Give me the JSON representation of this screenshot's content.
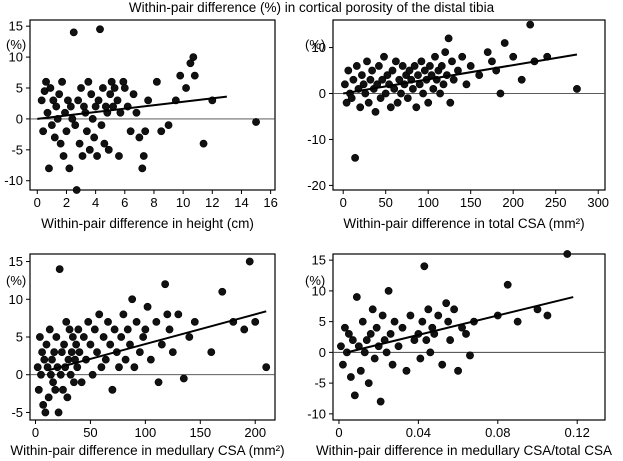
{
  "title": "Within-pair difference (%) in cortical porosity of the distal tibia",
  "chart_data": [
    {
      "type": "scatter",
      "panel": "top-left",
      "xlabel": "Within-pair difference in height (cm)",
      "ylabel": "(%)",
      "xlim": [
        -0.5,
        16.3
      ],
      "ylim": [
        -11.5,
        16
      ],
      "xticks": [
        0,
        2,
        4,
        6,
        8,
        10,
        12,
        14,
        16
      ],
      "yticks": [
        -10,
        -5,
        0,
        5,
        10,
        15
      ],
      "grid": false,
      "regression": {
        "x": [
          0,
          13
        ],
        "y": [
          0,
          3.6
        ]
      },
      "reference_line_y": 0,
      "points": [
        [
          0.3,
          3
        ],
        [
          0.4,
          -2
        ],
        [
          0.5,
          4.5
        ],
        [
          0.6,
          6
        ],
        [
          0.7,
          1
        ],
        [
          0.8,
          -8
        ],
        [
          0.9,
          5
        ],
        [
          1,
          -1
        ],
        [
          1.1,
          3
        ],
        [
          1.2,
          -3
        ],
        [
          1.3,
          2
        ],
        [
          1.4,
          0
        ],
        [
          1.5,
          4
        ],
        [
          1.6,
          -4
        ],
        [
          1.7,
          6
        ],
        [
          1.8,
          -6
        ],
        [
          1.9,
          1
        ],
        [
          2,
          -2
        ],
        [
          2.1,
          3
        ],
        [
          2.2,
          -8
        ],
        [
          2.3,
          2
        ],
        [
          2.4,
          0
        ],
        [
          2.5,
          14
        ],
        [
          2.6,
          -1
        ],
        [
          2.7,
          -11.5
        ],
        [
          2.8,
          3
        ],
        [
          2.9,
          -4
        ],
        [
          3,
          5
        ],
        [
          3.1,
          -6
        ],
        [
          3.2,
          2
        ],
        [
          3.3,
          1
        ],
        [
          3.4,
          -2
        ],
        [
          3.5,
          6
        ],
        [
          3.6,
          -5
        ],
        [
          3.7,
          4
        ],
        [
          3.8,
          0
        ],
        [
          3.9,
          -3
        ],
        [
          4,
          2
        ],
        [
          4.1,
          -6
        ],
        [
          4.2,
          3
        ],
        [
          4.3,
          14.5
        ],
        [
          4.4,
          -1
        ],
        [
          4.5,
          5
        ],
        [
          4.6,
          -4
        ],
        [
          4.7,
          2
        ],
        [
          4.8,
          1
        ],
        [
          4.9,
          -5
        ],
        [
          5,
          4
        ],
        [
          5.1,
          6
        ],
        [
          5.2,
          2
        ],
        [
          5.3,
          5
        ],
        [
          5.5,
          3
        ],
        [
          5.6,
          -6
        ],
        [
          5.7,
          1
        ],
        [
          5.9,
          6
        ],
        [
          6,
          5
        ],
        [
          6.2,
          2
        ],
        [
          6.4,
          -2
        ],
        [
          6.6,
          4
        ],
        [
          6.8,
          1
        ],
        [
          7,
          -3
        ],
        [
          7.2,
          -8
        ],
        [
          7.3,
          -6
        ],
        [
          7.4,
          -2
        ],
        [
          7.6,
          3
        ],
        [
          8.2,
          6
        ],
        [
          8.5,
          -2
        ],
        [
          9,
          -1
        ],
        [
          9.5,
          3
        ],
        [
          9.8,
          7
        ],
        [
          10.2,
          5
        ],
        [
          10.5,
          9
        ],
        [
          10.7,
          10
        ],
        [
          10.8,
          7
        ],
        [
          11.4,
          -4
        ],
        [
          12,
          3
        ],
        [
          15,
          -0.5
        ]
      ]
    },
    {
      "type": "scatter",
      "panel": "top-right",
      "xlabel": "Within-pair difference in total CSA (mm²)",
      "ylabel": "(%)",
      "xlim": [
        -12,
        308
      ],
      "ylim": [
        -21,
        16
      ],
      "xticks": [
        0,
        50,
        100,
        150,
        200,
        250,
        300
      ],
      "yticks": [
        -20,
        -10,
        0,
        10
      ],
      "grid": false,
      "regression": {
        "x": [
          0,
          275
        ],
        "y": [
          0,
          8.5
        ]
      },
      "reference_line_y": 0,
      "points": [
        [
          2,
          2
        ],
        [
          4,
          -2
        ],
        [
          6,
          5
        ],
        [
          8,
          0
        ],
        [
          10,
          -1
        ],
        [
          12,
          3
        ],
        [
          14,
          -14
        ],
        [
          16,
          6
        ],
        [
          18,
          1
        ],
        [
          20,
          -3
        ],
        [
          22,
          4
        ],
        [
          24,
          2
        ],
        [
          26,
          0
        ],
        [
          28,
          7
        ],
        [
          30,
          -2
        ],
        [
          32,
          3
        ],
        [
          34,
          5
        ],
        [
          36,
          1
        ],
        [
          38,
          -4
        ],
        [
          40,
          2
        ],
        [
          42,
          6
        ],
        [
          44,
          -1
        ],
        [
          46,
          3
        ],
        [
          48,
          8
        ],
        [
          50,
          0
        ],
        [
          52,
          4
        ],
        [
          54,
          2
        ],
        [
          56,
          -3
        ],
        [
          58,
          5
        ],
        [
          60,
          1
        ],
        [
          62,
          7
        ],
        [
          64,
          -2
        ],
        [
          66,
          3
        ],
        [
          68,
          0
        ],
        [
          70,
          6
        ],
        [
          72,
          2
        ],
        [
          74,
          4
        ],
        [
          76,
          -1
        ],
        [
          78,
          5
        ],
        [
          80,
          3
        ],
        [
          82,
          1
        ],
        [
          84,
          6
        ],
        [
          86,
          -3
        ],
        [
          88,
          4
        ],
        [
          90,
          2
        ],
        [
          92,
          7
        ],
        [
          94,
          0
        ],
        [
          96,
          5
        ],
        [
          98,
          3
        ],
        [
          100,
          -2
        ],
        [
          102,
          6
        ],
        [
          104,
          4
        ],
        [
          106,
          1
        ],
        [
          108,
          8
        ],
        [
          110,
          3
        ],
        [
          112,
          5
        ],
        [
          114,
          0
        ],
        [
          116,
          6
        ],
        [
          118,
          2
        ],
        [
          120,
          9
        ],
        [
          122,
          4
        ],
        [
          124,
          12
        ],
        [
          126,
          -2
        ],
        [
          128,
          7
        ],
        [
          130,
          3
        ],
        [
          135,
          5
        ],
        [
          140,
          8
        ],
        [
          145,
          2
        ],
        [
          150,
          6
        ],
        [
          160,
          4
        ],
        [
          170,
          9
        ],
        [
          175,
          7
        ],
        [
          180,
          5
        ],
        [
          185,
          0
        ],
        [
          190,
          11
        ],
        [
          200,
          8
        ],
        [
          210,
          3
        ],
        [
          220,
          15
        ],
        [
          225,
          7
        ],
        [
          240,
          8
        ],
        [
          275,
          1
        ]
      ]
    },
    {
      "type": "scatter",
      "panel": "bottom-left",
      "xlabel": "Within-pair difference in medullary CSA (mm²)",
      "ylabel": "(%)",
      "xlim": [
        -5,
        218
      ],
      "ylim": [
        -6,
        16
      ],
      "xticks": [
        0,
        50,
        100,
        150,
        200
      ],
      "yticks": [
        -5,
        0,
        5,
        10,
        15
      ],
      "grid": false,
      "regression": {
        "x": [
          12,
          210
        ],
        "y": [
          0.6,
          8.4
        ]
      },
      "reference_line_y": 0,
      "points": [
        [
          2,
          1
        ],
        [
          3,
          -2
        ],
        [
          4,
          5
        ],
        [
          5,
          0
        ],
        [
          6,
          3
        ],
        [
          7,
          -4
        ],
        [
          8,
          2
        ],
        [
          9,
          -5
        ],
        [
          10,
          4
        ],
        [
          11,
          1
        ],
        [
          12,
          -3
        ],
        [
          13,
          6
        ],
        [
          14,
          0
        ],
        [
          15,
          2
        ],
        [
          16,
          -1
        ],
        [
          17,
          3
        ],
        [
          18,
          -2
        ],
        [
          19,
          5
        ],
        [
          20,
          1
        ],
        [
          21,
          -5
        ],
        [
          22,
          14
        ],
        [
          23,
          0
        ],
        [
          24,
          3
        ],
        [
          25,
          -2
        ],
        [
          26,
          4
        ],
        [
          27,
          1
        ],
        [
          28,
          7
        ],
        [
          29,
          -3
        ],
        [
          30,
          2
        ],
        [
          31,
          6
        ],
        [
          32,
          0
        ],
        [
          33,
          3
        ],
        [
          34,
          5
        ],
        [
          35,
          -1
        ],
        [
          36,
          2
        ],
        [
          37,
          4
        ],
        [
          38,
          1
        ],
        [
          39,
          6
        ],
        [
          40,
          3
        ],
        [
          42,
          -1
        ],
        [
          44,
          5
        ],
        [
          46,
          2
        ],
        [
          48,
          7
        ],
        [
          50,
          4
        ],
        [
          52,
          0
        ],
        [
          54,
          6
        ],
        [
          56,
          3
        ],
        [
          58,
          8
        ],
        [
          60,
          1
        ],
        [
          62,
          5
        ],
        [
          64,
          2
        ],
        [
          66,
          7
        ],
        [
          68,
          4
        ],
        [
          70,
          -2
        ],
        [
          72,
          6
        ],
        [
          74,
          3
        ],
        [
          76,
          1
        ],
        [
          78,
          5
        ],
        [
          80,
          8
        ],
        [
          82,
          2
        ],
        [
          84,
          6
        ],
        [
          86,
          4
        ],
        [
          88,
          10
        ],
        [
          90,
          1
        ],
        [
          92,
          7
        ],
        [
          95,
          3
        ],
        [
          98,
          5
        ],
        [
          100,
          6
        ],
        [
          102,
          9
        ],
        [
          105,
          2
        ],
        [
          110,
          7
        ],
        [
          112,
          -1
        ],
        [
          115,
          4
        ],
        [
          118,
          12
        ],
        [
          120,
          8
        ],
        [
          122,
          6
        ],
        [
          125,
          3
        ],
        [
          130,
          8
        ],
        [
          135,
          -0.5
        ],
        [
          140,
          5
        ],
        [
          145,
          7
        ],
        [
          160,
          3
        ],
        [
          170,
          11
        ],
        [
          180,
          7
        ],
        [
          190,
          6
        ],
        [
          195,
          15
        ],
        [
          200,
          7
        ],
        [
          210,
          1
        ]
      ]
    },
    {
      "type": "scatter",
      "panel": "bottom-right",
      "xlabel": "Within-pair difference in medullary CSA/total CSA",
      "ylabel": "(%)",
      "xlim": [
        -0.003,
        0.134
      ],
      "ylim": [
        -11,
        16
      ],
      "xticks": [
        0,
        0.04,
        0.08,
        0.12
      ],
      "xtick_labels": [
        "0",
        "0.04",
        "0.08",
        "0.12"
      ],
      "yticks": [
        -10,
        -5,
        0,
        5,
        10,
        15
      ],
      "grid": false,
      "regression": {
        "x": [
          0.004,
          0.118
        ],
        "y": [
          0,
          9
        ]
      },
      "reference_line_y": 0,
      "points": [
        [
          0.001,
          1
        ],
        [
          0.002,
          -2
        ],
        [
          0.003,
          4
        ],
        [
          0.004,
          0
        ],
        [
          0.005,
          3
        ],
        [
          0.006,
          -4
        ],
        [
          0.007,
          2
        ],
        [
          0.008,
          -7
        ],
        [
          0.009,
          9
        ],
        [
          0.01,
          1
        ],
        [
          0.011,
          -3
        ],
        [
          0.012,
          5
        ],
        [
          0.013,
          0
        ],
        [
          0.014,
          2
        ],
        [
          0.015,
          -5
        ],
        [
          0.016,
          3
        ],
        [
          0.017,
          7
        ],
        [
          0.018,
          -1
        ],
        [
          0.019,
          4
        ],
        [
          0.02,
          1
        ],
        [
          0.021,
          -8
        ],
        [
          0.022,
          6
        ],
        [
          0.023,
          2
        ],
        [
          0.024,
          0
        ],
        [
          0.025,
          10
        ],
        [
          0.026,
          3
        ],
        [
          0.027,
          -2
        ],
        [
          0.028,
          5
        ],
        [
          0.03,
          1
        ],
        [
          0.032,
          4
        ],
        [
          0.034,
          -3
        ],
        [
          0.036,
          6
        ],
        [
          0.038,
          2
        ],
        [
          0.04,
          3
        ],
        [
          0.041,
          -1
        ],
        [
          0.042,
          5
        ],
        [
          0.043,
          14
        ],
        [
          0.044,
          2
        ],
        [
          0.045,
          7
        ],
        [
          0.046,
          0
        ],
        [
          0.047,
          4
        ],
        [
          0.048,
          3
        ],
        [
          0.05,
          6
        ],
        [
          0.052,
          -2
        ],
        [
          0.054,
          8
        ],
        [
          0.055,
          5
        ],
        [
          0.056,
          2
        ],
        [
          0.058,
          7
        ],
        [
          0.06,
          -3
        ],
        [
          0.062,
          4
        ],
        [
          0.064,
          3
        ],
        [
          0.066,
          -0.5
        ],
        [
          0.068,
          5
        ],
        [
          0.08,
          6
        ],
        [
          0.085,
          11
        ],
        [
          0.09,
          5
        ],
        [
          0.1,
          7
        ],
        [
          0.105,
          6
        ],
        [
          0.115,
          16
        ]
      ]
    }
  ]
}
